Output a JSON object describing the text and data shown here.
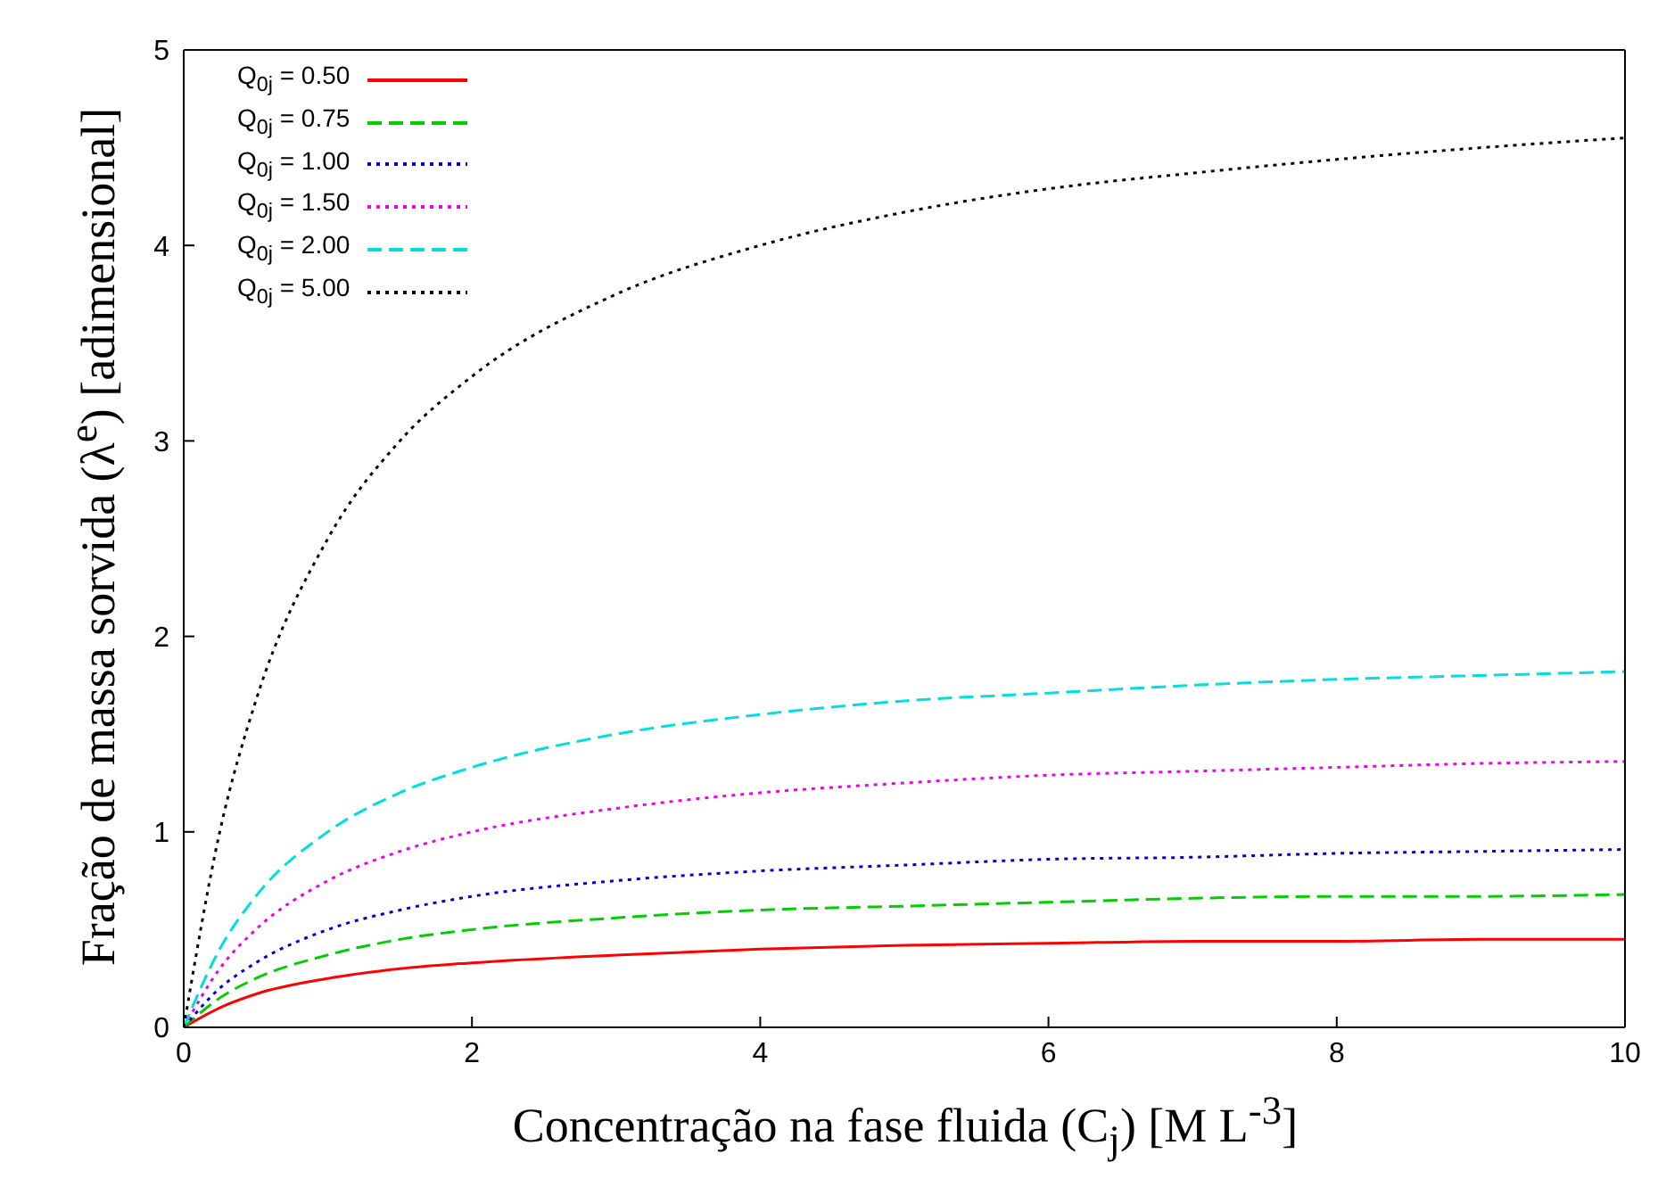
{
  "chart_data": {
    "type": "line",
    "xlabel": "Concentração na fase fluida (C$_{j}$) [M L$^{-3}$]",
    "ylabel": "Fração de massa sorvida (λ$^{e}$) [adimensional]",
    "x": [
      0,
      0.25,
      0.5,
      1,
      1.5,
      2,
      3,
      4,
      5,
      6,
      7,
      8,
      9,
      10
    ],
    "xlim": [
      0,
      10
    ],
    "xticks": [
      0,
      2,
      4,
      6,
      8,
      10
    ],
    "ylim": [
      0,
      5
    ],
    "yticks": [
      0,
      1,
      2,
      3,
      4,
      5
    ],
    "grid": false,
    "legend": "top left",
    "marker": "none",
    "series": [
      {
        "name": "Q$_{0j}$ = 0.50",
        "color": "#ff0000",
        "line_style": "solid",
        "values": [
          0,
          0.1,
          0.17,
          0.25,
          0.3,
          0.33,
          0.37,
          0.4,
          0.42,
          0.43,
          0.44,
          0.44,
          0.45,
          0.45
        ]
      },
      {
        "name": "Q$_{0j}$ = 0.75",
        "color": "#00cc00",
        "line_style": "dashed",
        "values": [
          0,
          0.15,
          0.25,
          0.37,
          0.45,
          0.5,
          0.56,
          0.6,
          0.62,
          0.64,
          0.66,
          0.67,
          0.67,
          0.68
        ]
      },
      {
        "name": "Q$_{0j}$ = 1.00",
        "color": "#0000cc",
        "line_style": "dotted",
        "values": [
          0,
          0.2,
          0.33,
          0.5,
          0.6,
          0.67,
          0.75,
          0.8,
          0.83,
          0.86,
          0.87,
          0.89,
          0.9,
          0.91
        ]
      },
      {
        "name": "Q$_{0j}$ = 1.50",
        "color": "#ee00ee",
        "line_style": "dotted",
        "values": [
          0,
          0.3,
          0.5,
          0.75,
          0.9,
          1.0,
          1.12,
          1.2,
          1.25,
          1.29,
          1.31,
          1.33,
          1.35,
          1.36
        ]
      },
      {
        "name": "Q$_{0j}$ = 2.00",
        "color": "#00dddd",
        "line_style": "dashed",
        "values": [
          0,
          0.4,
          0.67,
          1.0,
          1.2,
          1.33,
          1.5,
          1.6,
          1.67,
          1.71,
          1.75,
          1.78,
          1.8,
          1.82
        ]
      },
      {
        "name": "Q$_{0j}$ = 5.00",
        "color": "#000000",
        "line_style": "dotted",
        "values": [
          0,
          1.0,
          1.67,
          2.5,
          3.0,
          3.33,
          3.75,
          4.0,
          4.17,
          4.29,
          4.37,
          4.44,
          4.5,
          4.55
        ]
      }
    ]
  }
}
